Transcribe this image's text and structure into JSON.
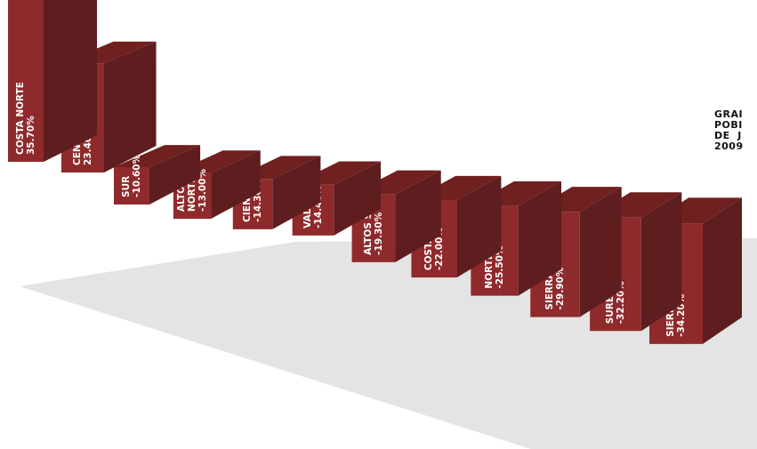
{
  "chart_data": {
    "type": "bar",
    "title_fragment": "GRAI\nPOBI\nDE  J\n2009",
    "categories": [
      "COSTA NORTE",
      "CENTRO",
      "SUR",
      "ALTOS NORTE",
      "CIENEGA",
      "VALLES",
      "ALTOS SUR",
      "COSTA SUR",
      "NORTE",
      "SIERRA OCCIDENTAL",
      "SURESTE",
      "SIERRA DE AMULA"
    ],
    "values": [
      35.7,
      23.4,
      -10.6,
      -13.0,
      -14.3,
      -14.4,
      -19.3,
      -22.0,
      -25.5,
      -29.9,
      -32.2,
      -34.2
    ],
    "value_labels": [
      "35.70%",
      "23.40%",
      "-10.60%",
      "-13.00%",
      "-14.30%",
      "-14.40%",
      "-19.30%",
      "-22.00%",
      "-25.50%",
      "-29.90%",
      "-32.20%",
      "-34.20%"
    ],
    "label_lines": [
      [
        "COSTA NORTE",
        "35.70%"
      ],
      [
        "CENTRO",
        "23.40%"
      ],
      [
        "SUR",
        "-10.60%"
      ],
      [
        "ALTOS",
        "NORTE",
        "-13.00%"
      ],
      [
        "CIENEGA",
        "-14.30%"
      ],
      [
        "VALLES",
        "-14.40%"
      ],
      [
        "ALTOS SUR",
        "-19.30%"
      ],
      [
        "COSTA SUR",
        "-22.00%"
      ],
      [
        "NORTE",
        "-25.50%"
      ],
      [
        "SIERRA OCCIDENTAL",
        "-29.90%"
      ],
      [
        "SURESTE",
        "-32.20%"
      ],
      [
        "SIERRA DE AMULA",
        "-34.20%"
      ]
    ],
    "colors": {
      "front": "#8f2a2c",
      "side": "#5e1d1f",
      "top": "#70201f",
      "shadow": "#e4e4e4"
    },
    "legend": "none",
    "grid": false
  }
}
